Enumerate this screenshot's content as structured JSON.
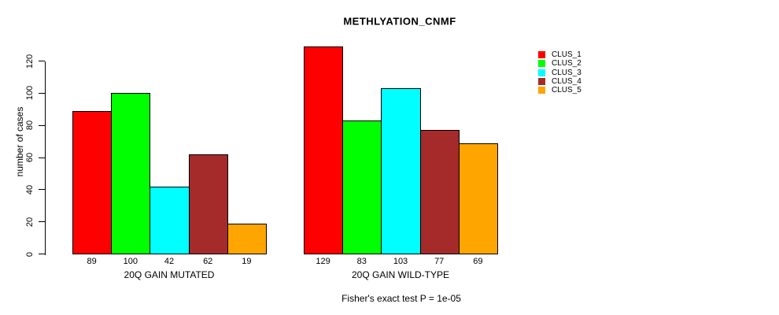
{
  "chart_data": {
    "type": "bar",
    "title": "METHLYATION_CNMF",
    "ylabel": "number of cases",
    "xlabel": "",
    "yticks": [
      0,
      20,
      40,
      60,
      80,
      100,
      120
    ],
    "ylim": [
      0,
      130
    ],
    "grid": false,
    "legend_position": "right",
    "series_labels": [
      "CLUS_1",
      "CLUS_2",
      "CLUS_3",
      "CLUS_4",
      "CLUS_5"
    ],
    "colors": [
      "#ff0000",
      "#00ff00",
      "#00ffff",
      "#a52a2a",
      "#ffa500"
    ],
    "bar_border_color": "#000000",
    "axis_color": "#000000",
    "groups": [
      {
        "label": "20Q GAIN MUTATED",
        "values": [
          89,
          100,
          42,
          62,
          19
        ]
      },
      {
        "label": "20Q GAIN WILD-TYPE",
        "values": [
          129,
          83,
          103,
          77,
          69
        ]
      }
    ],
    "value_labels_shown": true,
    "annotation": "Fisher's exact test P = 1e-05"
  }
}
